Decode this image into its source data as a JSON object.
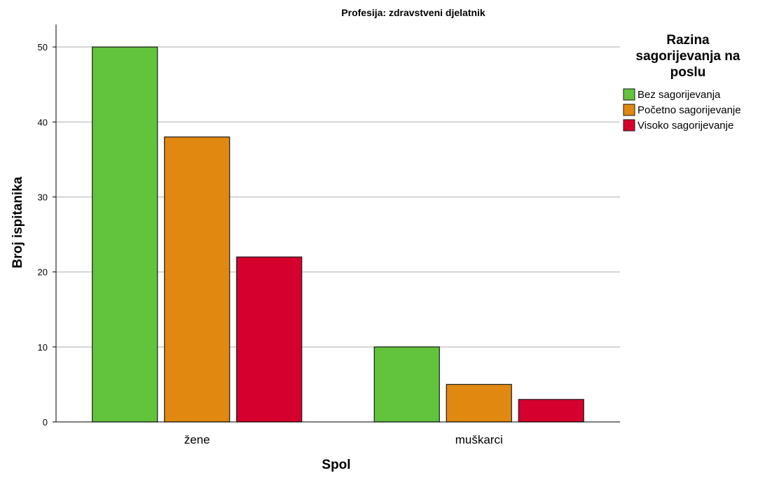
{
  "chart_data": {
    "type": "bar",
    "title": "Profesija: zdravstveni djelatnik",
    "xlabel": "Spol",
    "ylabel": "Broj ispitanika",
    "categories": [
      "žene",
      "muškarci"
    ],
    "ylim": [
      0,
      53
    ],
    "yticks": [
      0,
      10,
      20,
      30,
      40,
      50
    ],
    "grid": true,
    "legend": {
      "title_lines": [
        "Razina",
        "sagorijevanja na",
        "poslu"
      ],
      "placement": "right"
    },
    "series": [
      {
        "name": "Bez sagorijevanja",
        "color": "#62C33C",
        "values": [
          50,
          10
        ]
      },
      {
        "name": "Početno sagorijevanje",
        "color": "#E0880F",
        "values": [
          38,
          5
        ]
      },
      {
        "name": "Visoko sagorijevanje",
        "color": "#D6002E",
        "values": [
          22,
          3
        ]
      }
    ]
  }
}
